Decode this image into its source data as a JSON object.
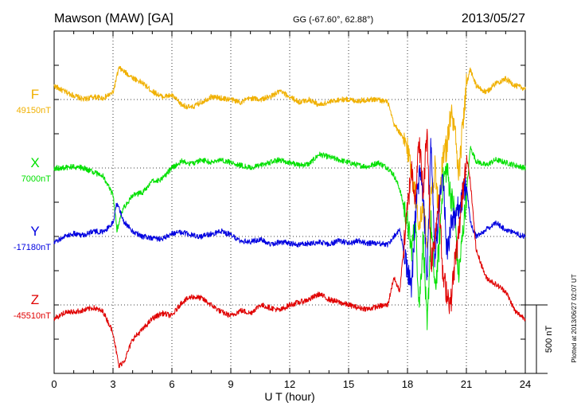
{
  "header": {
    "station": "Mawson (MAW)  [GA]",
    "coords": "GG (-67.60°,  62.88°)",
    "date": "2013/05/27"
  },
  "plotted_note": "Plotted at 2013/06/27 02:07 UT",
  "scale_label": "500 nT",
  "chart_data": {
    "type": "line",
    "title": "",
    "xlabel": "U T (hour)",
    "ylabel": "",
    "xlim": [
      0,
      24
    ],
    "x_ticks": [
      "0",
      "3",
      "6",
      "9",
      "12",
      "15",
      "18",
      "21",
      "24"
    ],
    "grid": true,
    "scale_bar_nT": 500,
    "series": [
      {
        "name": "F",
        "baseline": "49150nT",
        "color": "#f0b000",
        "x": [
          0,
          0.5,
          1,
          1.5,
          2,
          2.5,
          3,
          3.3,
          3.6,
          4,
          4.5,
          5,
          5.5,
          6,
          6.5,
          7,
          7.5,
          8,
          8.5,
          9,
          9.5,
          10,
          10.5,
          11,
          11.5,
          12,
          12.5,
          13,
          13.5,
          14,
          14.5,
          15,
          15.5,
          16,
          16.5,
          17,
          17.3,
          17.6,
          18,
          18.2,
          18.4,
          18.6,
          18.8,
          19,
          19.2,
          19.4,
          19.6,
          19.8,
          20,
          20.2,
          20.4,
          20.6,
          20.8,
          21,
          21.2,
          21.5,
          22,
          22.5,
          23,
          23.5,
          24
        ],
        "values": [
          100,
          60,
          30,
          0,
          20,
          10,
          50,
          230,
          200,
          160,
          120,
          60,
          20,
          30,
          -40,
          -60,
          -20,
          20,
          10,
          0,
          -20,
          10,
          0,
          20,
          60,
          20,
          -20,
          0,
          -40,
          -20,
          0,
          0,
          -10,
          0,
          0,
          -20,
          -180,
          -240,
          -350,
          -520,
          -700,
          -900,
          -800,
          -1050,
          -700,
          -500,
          -850,
          -400,
          -350,
          -100,
          -200,
          -600,
          -200,
          100,
          220,
          100,
          50,
          120,
          150,
          100,
          80
        ]
      },
      {
        "name": "X",
        "baseline": "7000nT",
        "color": "#00e000",
        "x": [
          0,
          0.5,
          1,
          1.5,
          2,
          2.5,
          3,
          3.2,
          3.5,
          4,
          4.5,
          5,
          5.5,
          6,
          6.5,
          7,
          7.5,
          8,
          8.5,
          9,
          9.5,
          10,
          10.5,
          11,
          11.5,
          12,
          12.5,
          13,
          13.5,
          14,
          14.5,
          15,
          15.5,
          16,
          16.5,
          17,
          17.3,
          17.6,
          18,
          18.2,
          18.4,
          18.6,
          18.8,
          19,
          19.2,
          19.4,
          19.6,
          19.8,
          20,
          20.2,
          20.4,
          20.6,
          20.8,
          21,
          21.2,
          21.5,
          22,
          22.5,
          23,
          23.5,
          24
        ],
        "values": [
          0,
          0,
          10,
          0,
          -30,
          -60,
          -200,
          -450,
          -300,
          -200,
          -180,
          -100,
          -80,
          0,
          50,
          30,
          60,
          40,
          60,
          40,
          20,
          0,
          20,
          40,
          60,
          40,
          20,
          30,
          100,
          80,
          60,
          40,
          20,
          10,
          40,
          0,
          -50,
          -150,
          -400,
          -600,
          -400,
          -1000,
          -500,
          -1200,
          -400,
          -900,
          -600,
          -100,
          0,
          -200,
          -300,
          -800,
          -500,
          -200,
          150,
          50,
          20,
          60,
          40,
          20,
          0
        ]
      },
      {
        "name": "Y",
        "baseline": "-17180nT",
        "color": "#0000e0",
        "x": [
          0,
          0.5,
          1,
          1.5,
          2,
          2.5,
          3,
          3.2,
          3.5,
          4,
          4.5,
          5,
          5.5,
          6,
          6.5,
          7,
          7.5,
          8,
          8.5,
          9,
          9.5,
          10,
          10.5,
          11,
          11.5,
          12,
          12.5,
          13,
          13.5,
          14,
          14.5,
          15,
          15.5,
          16,
          16.5,
          17,
          17.3,
          17.6,
          18,
          18.2,
          18.4,
          18.6,
          18.8,
          19,
          19.2,
          19.4,
          19.6,
          19.8,
          20,
          20.2,
          20.4,
          20.6,
          20.8,
          21,
          21.2,
          21.5,
          22,
          22.5,
          23,
          23.5,
          24
        ],
        "values": [
          -50,
          0,
          20,
          10,
          40,
          30,
          100,
          250,
          120,
          40,
          0,
          -10,
          -20,
          20,
          30,
          10,
          0,
          20,
          40,
          10,
          -30,
          -40,
          -20,
          -60,
          -40,
          -50,
          -60,
          -50,
          -40,
          -60,
          -30,
          -50,
          -30,
          -50,
          -50,
          -60,
          0,
          50,
          -250,
          -400,
          150,
          450,
          300,
          -300,
          700,
          -200,
          200,
          500,
          -100,
          50,
          150,
          200,
          300,
          400,
          100,
          0,
          50,
          100,
          50,
          20,
          0
        ]
      },
      {
        "name": "Z",
        "baseline": "-45510nT",
        "color": "#e00000",
        "x": [
          0,
          0.5,
          1,
          1.5,
          2,
          2.5,
          3,
          3.3,
          3.6,
          4,
          4.5,
          5,
          5.5,
          6,
          6.5,
          7,
          7.5,
          8,
          8.5,
          9,
          9.5,
          10,
          10.5,
          11,
          11.5,
          12,
          12.5,
          13,
          13.5,
          14,
          14.5,
          15,
          15.5,
          16,
          16.5,
          17,
          17.3,
          17.6,
          18,
          18.2,
          18.4,
          18.6,
          18.8,
          19,
          19.2,
          19.4,
          19.6,
          19.8,
          20,
          20.2,
          20.4,
          20.6,
          20.8,
          21,
          21.2,
          21.5,
          22,
          22.5,
          23,
          23.5,
          24
        ],
        "values": [
          -100,
          -60,
          -50,
          -40,
          -20,
          -50,
          -200,
          -450,
          -400,
          -250,
          -180,
          -100,
          -60,
          -80,
          20,
          60,
          50,
          0,
          -50,
          -80,
          -40,
          -60,
          0,
          -20,
          -40,
          0,
          20,
          40,
          80,
          40,
          20,
          0,
          -20,
          -30,
          -10,
          0,
          200,
          100,
          700,
          1000,
          800,
          1200,
          800,
          1300,
          300,
          500,
          800,
          200,
          100,
          0,
          300,
          500,
          800,
          1100,
          900,
          400,
          200,
          150,
          100,
          -50,
          -100
        ]
      }
    ]
  }
}
